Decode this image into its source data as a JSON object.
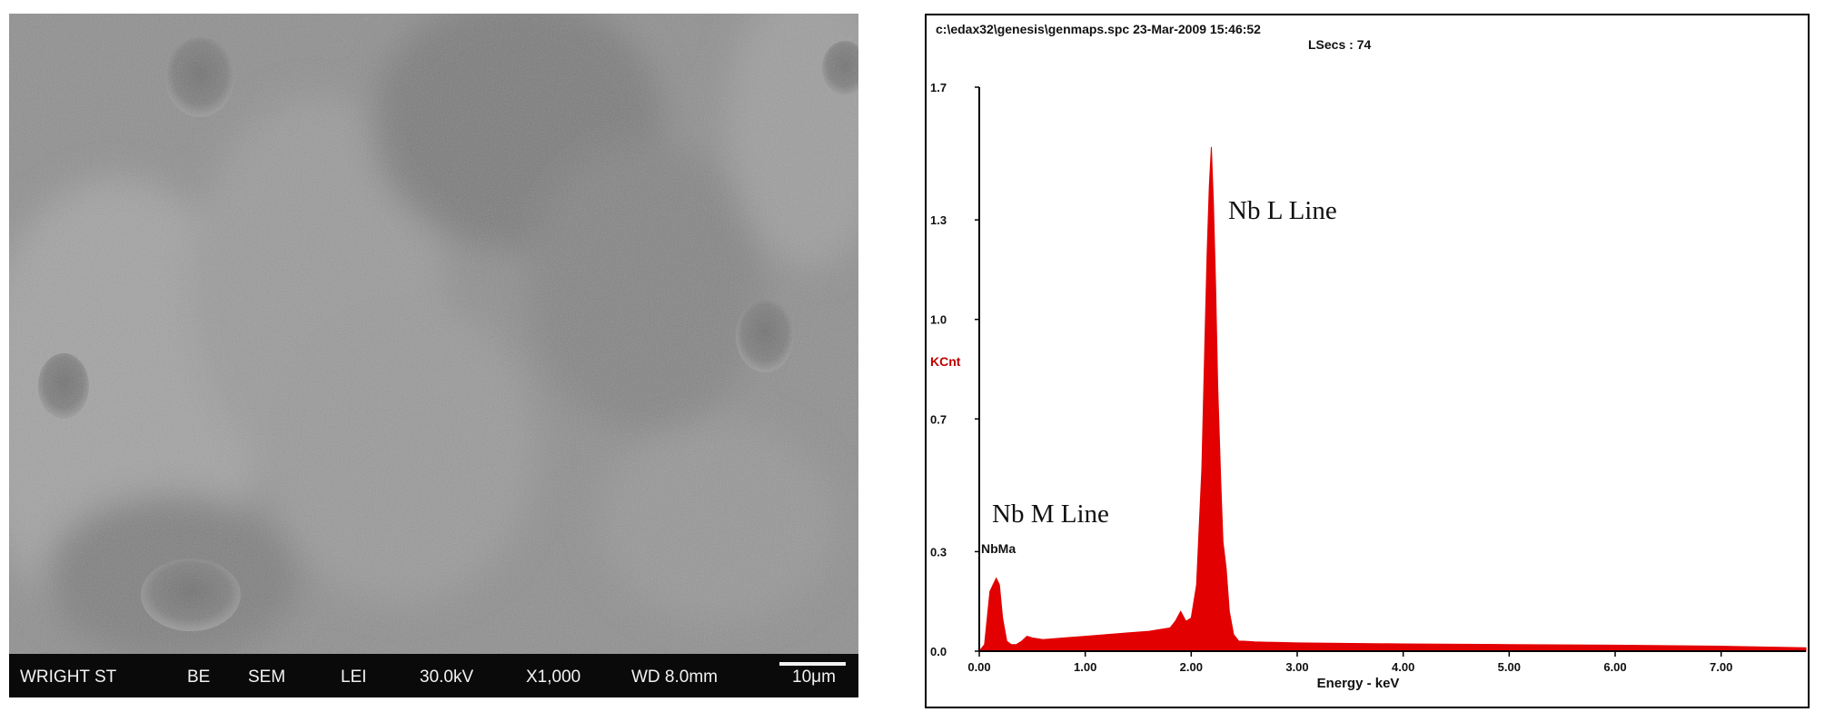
{
  "sem_panel": {
    "databar": {
      "instrument": "WRIGHT ST",
      "detector": "BE",
      "mode": "SEM",
      "signal": "LEI",
      "voltage": "30.0kV",
      "magnification": "X1,000",
      "working_distance": "WD 8.0mm",
      "scale_bar": "10μm"
    }
  },
  "eds_panel": {
    "header_line1": "c:\\edax32\\genesis\\genmaps.spc  23-Mar-2009 15:46:52",
    "header_line2": "LSecs :  74",
    "colors": {
      "spectrum": "#e30000",
      "ylabel": "#c00000",
      "axis": "#000000"
    }
  },
  "chart_data": {
    "type": "area",
    "title": "",
    "xlabel": "Energy - keV",
    "ylabel": "KCnt",
    "xlim": [
      0,
      7.8
    ],
    "ylim": [
      0,
      1.7
    ],
    "x_ticks": [
      "0.00",
      "1.00",
      "2.00",
      "3.00",
      "4.00",
      "5.00",
      "6.00",
      "7.00"
    ],
    "y_ticks": [
      "0.0",
      "0.3",
      "0.7",
      "1.0",
      "1.3",
      "1.7"
    ],
    "series": [
      {
        "x": [
          0.0,
          0.05,
          0.1,
          0.13,
          0.16,
          0.19,
          0.22,
          0.26,
          0.3,
          0.35,
          0.4,
          0.45,
          0.5,
          0.6,
          0.8,
          1.0,
          1.2,
          1.4,
          1.6,
          1.8,
          1.85,
          1.9,
          1.95,
          2.0,
          2.05,
          2.1,
          2.13,
          2.15,
          2.17,
          2.19,
          2.21,
          2.23,
          2.25,
          2.28,
          2.3,
          2.33,
          2.36,
          2.4,
          2.45,
          2.5,
          2.6,
          3.0,
          4.0,
          5.0,
          6.0,
          7.0,
          7.8
        ],
        "y": [
          0.0,
          0.02,
          0.18,
          0.2,
          0.22,
          0.2,
          0.1,
          0.03,
          0.02,
          0.02,
          0.03,
          0.045,
          0.04,
          0.035,
          0.04,
          0.045,
          0.05,
          0.055,
          0.06,
          0.07,
          0.09,
          0.12,
          0.09,
          0.1,
          0.2,
          0.55,
          0.95,
          1.2,
          1.4,
          1.52,
          1.35,
          1.1,
          0.8,
          0.5,
          0.33,
          0.25,
          0.12,
          0.05,
          0.03,
          0.03,
          0.028,
          0.025,
          0.022,
          0.02,
          0.018,
          0.015,
          0.01
        ]
      }
    ],
    "annotations": [
      "Nb L Line",
      "Nb M Line",
      "NbMa"
    ]
  }
}
